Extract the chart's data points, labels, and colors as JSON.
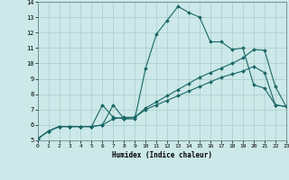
{
  "title": "",
  "xlabel": "Humidex (Indice chaleur)",
  "ylabel": "",
  "bg_color": "#cce8e8",
  "grid_color": "#aacccc",
  "line_color": "#1a6666",
  "xlim": [
    0,
    23
  ],
  "ylim": [
    5,
    14
  ],
  "xticks": [
    0,
    1,
    2,
    3,
    4,
    5,
    6,
    7,
    8,
    9,
    10,
    11,
    12,
    13,
    14,
    15,
    16,
    17,
    18,
    19,
    20,
    21,
    22,
    23
  ],
  "yticks": [
    5,
    6,
    7,
    8,
    9,
    10,
    11,
    12,
    13,
    14
  ],
  "line1_x": [
    0,
    1,
    2,
    3,
    4,
    5,
    6,
    7,
    8,
    9,
    10,
    11,
    12,
    13,
    14,
    15,
    16,
    17,
    18,
    19,
    20,
    21,
    22,
    23
  ],
  "line1_y": [
    5.1,
    5.6,
    5.9,
    5.9,
    5.9,
    5.9,
    6.0,
    6.4,
    6.5,
    6.5,
    7.0,
    7.3,
    7.6,
    7.9,
    8.2,
    8.5,
    8.8,
    9.1,
    9.3,
    9.5,
    9.8,
    9.4,
    7.3,
    7.2
  ],
  "line2_x": [
    0,
    1,
    2,
    3,
    4,
    5,
    6,
    7,
    8,
    9,
    10,
    11,
    12,
    13,
    14,
    15,
    16,
    17,
    18,
    19,
    20,
    21,
    22,
    23
  ],
  "line2_y": [
    5.1,
    5.6,
    5.9,
    5.9,
    5.9,
    5.9,
    7.3,
    6.5,
    6.4,
    6.4,
    9.7,
    11.9,
    12.8,
    13.7,
    13.3,
    13.0,
    11.4,
    11.4,
    10.9,
    11.0,
    8.6,
    8.4,
    7.3,
    7.2
  ],
  "line3_x": [
    0,
    1,
    2,
    3,
    4,
    5,
    6,
    7,
    8,
    9,
    10,
    11,
    12,
    13,
    14,
    15,
    16,
    17,
    18,
    19,
    20,
    21,
    22,
    23
  ],
  "line3_y": [
    5.1,
    5.6,
    5.9,
    5.9,
    5.9,
    5.9,
    6.0,
    7.3,
    6.4,
    6.5,
    7.1,
    7.5,
    7.9,
    8.3,
    8.7,
    9.1,
    9.4,
    9.7,
    10.0,
    10.35,
    10.9,
    10.85,
    8.5,
    7.2
  ]
}
